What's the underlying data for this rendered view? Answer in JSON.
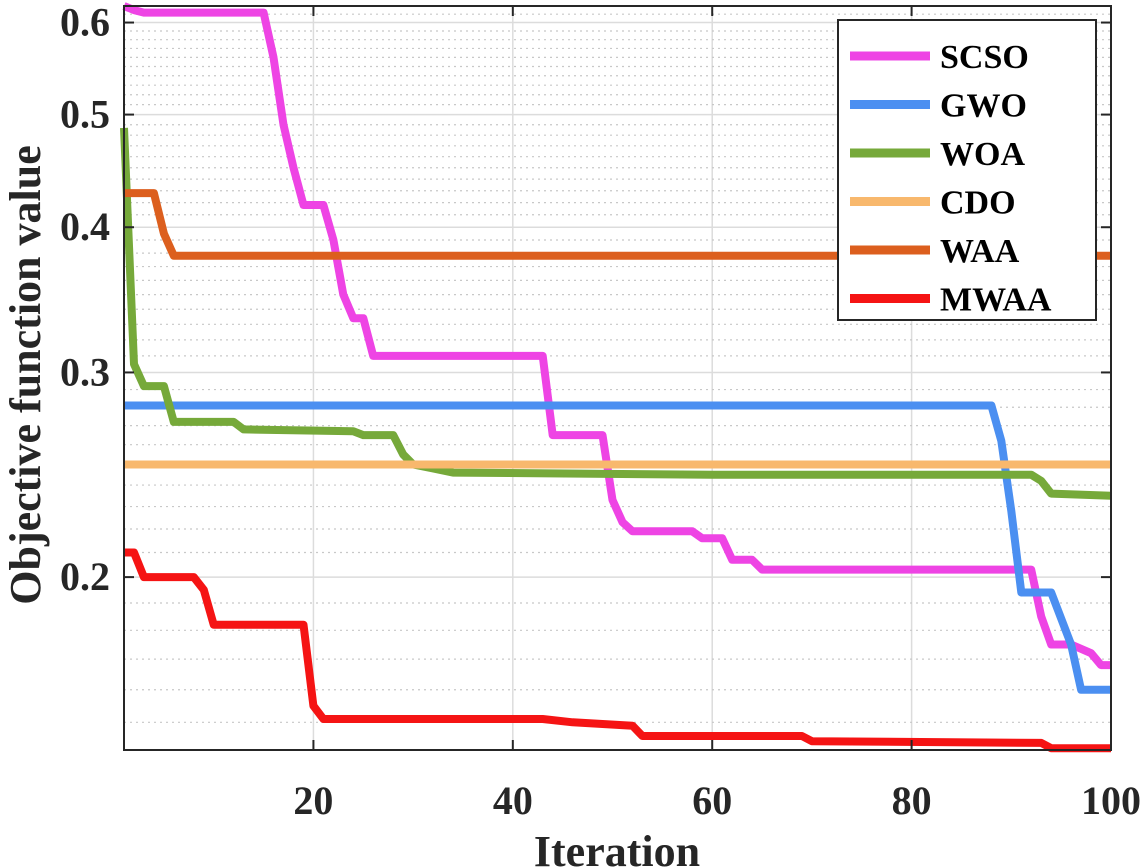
{
  "chart_data": {
    "type": "line",
    "xlabel": "Iteration",
    "ylabel": "Objective function value",
    "yscale": "log",
    "xlim": [
      1,
      100
    ],
    "ylim": [
      0.142,
      0.62
    ],
    "xticks": [
      20,
      40,
      60,
      80,
      100
    ],
    "xtick_labels": [
      "20",
      "40",
      "60",
      "80",
      "100"
    ],
    "yticks": [
      0.2,
      0.3,
      0.4,
      0.5,
      0.6
    ],
    "ytick_labels": [
      "0.2",
      "0.3",
      "0.4",
      "0.5",
      "0.6"
    ],
    "grid": true,
    "legend_position": "top-right",
    "series": [
      {
        "name": "SCSO",
        "color": "#ee44e4",
        "points": [
          [
            1,
            0.62
          ],
          [
            2,
            0.615
          ],
          [
            3,
            0.612
          ],
          [
            15,
            0.612
          ],
          [
            16,
            0.56
          ],
          [
            17,
            0.49
          ],
          [
            18,
            0.45
          ],
          [
            19,
            0.418
          ],
          [
            21,
            0.418
          ],
          [
            22,
            0.39
          ],
          [
            23,
            0.35
          ],
          [
            24,
            0.334
          ],
          [
            25,
            0.334
          ],
          [
            26,
            0.31
          ],
          [
            43,
            0.31
          ],
          [
            44,
            0.265
          ],
          [
            49,
            0.265
          ],
          [
            50,
            0.233
          ],
          [
            51,
            0.223
          ],
          [
            52,
            0.219
          ],
          [
            58,
            0.219
          ],
          [
            59,
            0.216
          ],
          [
            61,
            0.216
          ],
          [
            62,
            0.207
          ],
          [
            64,
            0.207
          ],
          [
            65,
            0.203
          ],
          [
            92,
            0.203
          ],
          [
            93,
            0.185
          ],
          [
            94,
            0.175
          ],
          [
            96,
            0.175
          ],
          [
            98,
            0.172
          ],
          [
            99,
            0.168
          ],
          [
            100,
            0.168
          ]
        ]
      },
      {
        "name": "GWO",
        "color": "#4b8ff1",
        "points": [
          [
            1,
            0.281
          ],
          [
            88,
            0.281
          ],
          [
            89,
            0.262
          ],
          [
            90,
            0.228
          ],
          [
            91,
            0.194
          ],
          [
            94,
            0.194
          ],
          [
            96,
            0.175
          ],
          [
            97,
            0.16
          ],
          [
            100,
            0.16
          ]
        ]
      },
      {
        "name": "WOA",
        "color": "#76a93a",
        "points": [
          [
            1,
            0.487
          ],
          [
            2,
            0.305
          ],
          [
            3,
            0.292
          ],
          [
            5,
            0.292
          ],
          [
            6,
            0.272
          ],
          [
            12,
            0.272
          ],
          [
            13,
            0.268
          ],
          [
            24,
            0.267
          ],
          [
            25,
            0.265
          ],
          [
            28,
            0.265
          ],
          [
            29,
            0.255
          ],
          [
            30,
            0.25
          ],
          [
            32,
            0.248
          ],
          [
            34,
            0.246
          ],
          [
            60,
            0.245
          ],
          [
            92,
            0.245
          ],
          [
            93,
            0.242
          ],
          [
            94,
            0.236
          ],
          [
            100,
            0.235
          ]
        ]
      },
      {
        "name": "CDO",
        "color": "#f8b86d",
        "points": [
          [
            1,
            0.25
          ],
          [
            100,
            0.25
          ]
        ]
      },
      {
        "name": "WAA",
        "color": "#dc5f1e",
        "points": [
          [
            1,
            0.428
          ],
          [
            4,
            0.428
          ],
          [
            5,
            0.395
          ],
          [
            6,
            0.378
          ],
          [
            100,
            0.378
          ]
        ]
      },
      {
        "name": "MWAA",
        "color": "#f51414",
        "points": [
          [
            1,
            0.21
          ],
          [
            2,
            0.21
          ],
          [
            3,
            0.2
          ],
          [
            8,
            0.2
          ],
          [
            9,
            0.195
          ],
          [
            10,
            0.182
          ],
          [
            19,
            0.182
          ],
          [
            20,
            0.155
          ],
          [
            21,
            0.151
          ],
          [
            43,
            0.151
          ],
          [
            46,
            0.15
          ],
          [
            52,
            0.149
          ],
          [
            53,
            0.146
          ],
          [
            69,
            0.146
          ],
          [
            70,
            0.1445
          ],
          [
            93,
            0.144
          ],
          [
            94,
            0.1425
          ],
          [
            100,
            0.1425
          ]
        ]
      }
    ]
  }
}
